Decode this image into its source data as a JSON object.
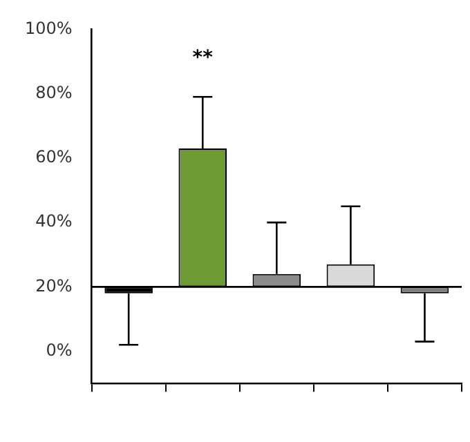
{
  "chart_data": {
    "type": "bar",
    "categories": [
      null,
      null,
      null,
      null,
      null
    ],
    "base": [
      20,
      20,
      20,
      20,
      20
    ],
    "values": [
      -2,
      43,
      4,
      7,
      -2
    ],
    "colors": [
      "#000000",
      "#6e9a35",
      "#8c8c8c",
      "#d9d9d9",
      "#7f7f7f"
    ],
    "errors": [
      [
        2,
        18
      ],
      [
        63,
        79
      ],
      [
        24,
        40
      ],
      [
        27,
        45
      ],
      [
        3,
        18
      ]
    ],
    "ylim": [
      -10,
      100
    ],
    "yticks": [
      {
        "value": 0,
        "label": "0%"
      },
      {
        "value": 20,
        "label": "20%"
      },
      {
        "value": 40,
        "label": "40%"
      },
      {
        "value": 60,
        "label": "60%"
      },
      {
        "value": 80,
        "label": "80%"
      },
      {
        "value": 100,
        "label": "100%"
      }
    ],
    "ref_lines": [
      {
        "axis": "y",
        "value": 20,
        "color": "#000000"
      }
    ],
    "annotations": [
      "**"
    ],
    "grid": false,
    "legend": false
  }
}
